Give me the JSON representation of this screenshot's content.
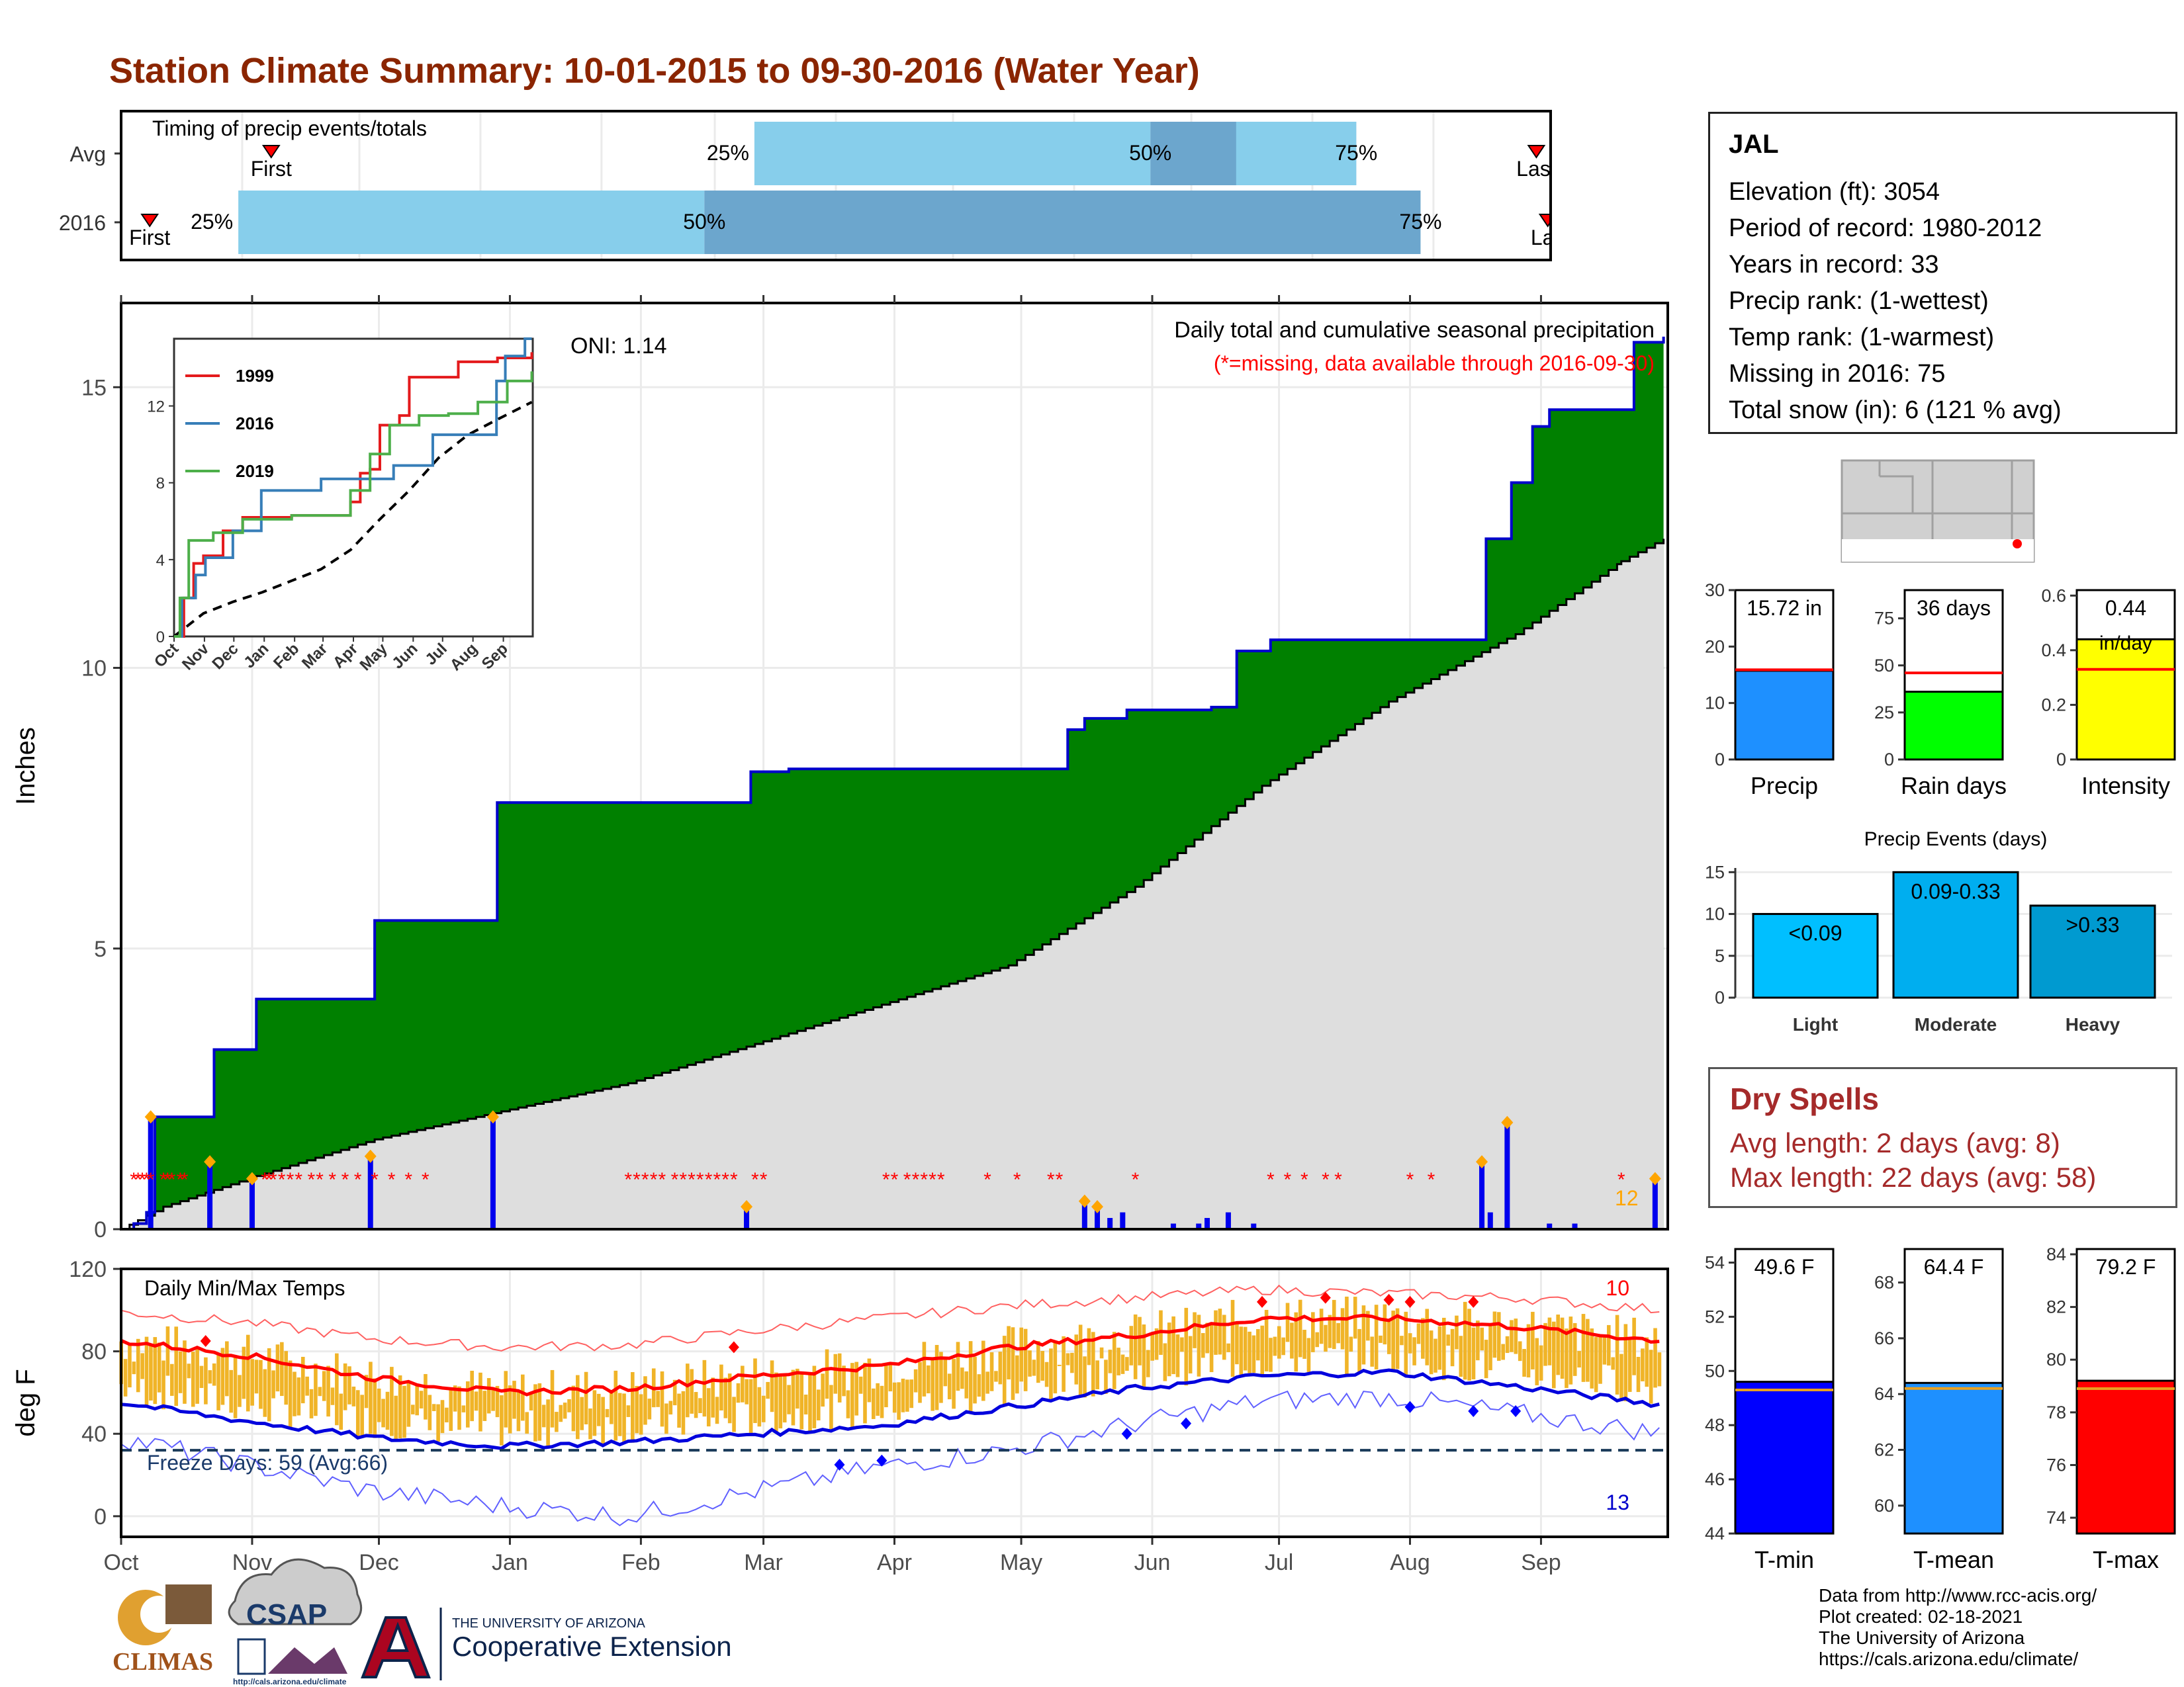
{
  "page": {
    "title": "Station Climate Summary: 10-01-2015 to 09-30-2016 (Water Year)"
  },
  "timing_panel": {
    "label": "Timing of precip events/totals",
    "rows": [
      {
        "name": "Avg",
        "first_label": "First",
        "last_label": "Last",
        "first_frac": 0.105,
        "last_frac": 0.99,
        "p25_frac": 0.443,
        "p50_frac": 0.72,
        "p75_frac": 0.864,
        "labels": [
          "25%",
          "50%",
          "75%"
        ]
      },
      {
        "name": "2016",
        "first_label": "First",
        "last_label": "Las",
        "first_frac": 0.02,
        "last_frac": 0.998,
        "p25_frac": 0.082,
        "p50_frac": 0.408,
        "p75_frac": 0.909,
        "labels": [
          "25%",
          "50%",
          "75%"
        ]
      }
    ]
  },
  "station": {
    "name": "JAL",
    "lines": [
      "Elevation (ft): 3054",
      "Period of record: 1980-2012",
      "Years in record: 33",
      "Precip rank:  (1-wettest)",
      "Temp rank:  (1-warmest)",
      "Missing in 2016: 75",
      "Total snow (in): 6 (121 % avg)"
    ]
  },
  "dry_spells": {
    "title": "Dry Spells",
    "lines": [
      "Avg length: 2 days (avg: 8)",
      "Max length: 22 days (avg: 58)"
    ]
  },
  "footer": {
    "lines": [
      "Data from http://www.rcc-acis.org/",
      "Plot created: 02-18-2021",
      "The University of Arizona",
      "https://cals.arizona.edu/climate/"
    ]
  },
  "logos": {
    "climas": "CLIMAS",
    "csap": "CSAP",
    "csap_url": "http://cals.arizona.edu/climate",
    "ua_top": "THE UNIVERSITY OF ARIZONA",
    "ua_bottom": "Cooperative Extension"
  },
  "colors": {
    "title": "#8b2500",
    "green": "#008000",
    "blue_line": "#0000cc",
    "gray_fill": "#dedede",
    "orange": "#f0b428",
    "red": "#ff0000",
    "light_blue": "#87ceeb",
    "mid_blue": "#6ca6cd",
    "dry": "#a52a2a"
  },
  "chart_data": [
    {
      "type": "area",
      "id": "precip-main",
      "title": "Daily total and cumulative seasonal precipitation",
      "subtitle": "(*=missing, data available through 2016-09-30)",
      "ylabel": "Inches",
      "ylim": [
        0,
        16.5
      ],
      "yticks": [
        0,
        5,
        10,
        15
      ],
      "x_months": [
        "Oct",
        "Nov",
        "Dec",
        "Jan",
        "Feb",
        "Mar",
        "Apr",
        "May",
        "Jun",
        "Jul",
        "Aug",
        "Sep"
      ],
      "oni_label": "ONI: 1.14",
      "count_label": "12",
      "cumulative_2016": [
        [
          0,
          0
        ],
        [
          3,
          0.1
        ],
        [
          6,
          0.3
        ],
        [
          8,
          2.0
        ],
        [
          21,
          2.0
        ],
        [
          22,
          3.2
        ],
        [
          31,
          3.2
        ],
        [
          32,
          4.1
        ],
        [
          59,
          4.1
        ],
        [
          60,
          5.5
        ],
        [
          88,
          5.5
        ],
        [
          89,
          7.6
        ],
        [
          148,
          7.6
        ],
        [
          149,
          8.15
        ],
        [
          157,
          8.15
        ],
        [
          158,
          8.2
        ],
        [
          222,
          8.2
        ],
        [
          224,
          8.9
        ],
        [
          228,
          9.1
        ],
        [
          238,
          9.25
        ],
        [
          258,
          9.3
        ],
        [
          264,
          10.3
        ],
        [
          272,
          10.5
        ],
        [
          314,
          10.5
        ],
        [
          322,
          10.5
        ],
        [
          323,
          12.3
        ],
        [
          329,
          13.3
        ],
        [
          334,
          14.3
        ],
        [
          338,
          14.6
        ],
        [
          354,
          14.6
        ],
        [
          358,
          15.8
        ],
        [
          365,
          15.9
        ]
      ],
      "cumulative_avg": [
        [
          0,
          0
        ],
        [
          10,
          0.4
        ],
        [
          30,
          0.9
        ],
        [
          60,
          1.6
        ],
        [
          90,
          2.1
        ],
        [
          120,
          2.6
        ],
        [
          150,
          3.3
        ],
        [
          180,
          4.0
        ],
        [
          210,
          4.7
        ],
        [
          240,
          6.1
        ],
        [
          270,
          7.9
        ],
        [
          300,
          9.4
        ],
        [
          330,
          10.6
        ],
        [
          355,
          11.9
        ],
        [
          365,
          12.3
        ]
      ],
      "daily_bars": [
        [
          7,
          2.0
        ],
        [
          21,
          1.2
        ],
        [
          31,
          0.9
        ],
        [
          59,
          1.3
        ],
        [
          88,
          2.0
        ],
        [
          148,
          0.4
        ],
        [
          228,
          0.5
        ],
        [
          231,
          0.4
        ],
        [
          234,
          0.2
        ],
        [
          237,
          0.3
        ],
        [
          249,
          0.1
        ],
        [
          255,
          0.1
        ],
        [
          257,
          0.2
        ],
        [
          262,
          0.3
        ],
        [
          268,
          0.1
        ],
        [
          322,
          1.2
        ],
        [
          324,
          0.3
        ],
        [
          328,
          1.9
        ],
        [
          338,
          0.1
        ],
        [
          344,
          0.1
        ],
        [
          363,
          0.9
        ]
      ],
      "missing_days": [
        3,
        4,
        5,
        6,
        7,
        10,
        11,
        12,
        14,
        15,
        34,
        35,
        36,
        38,
        40,
        42,
        45,
        47,
        50,
        53,
        56,
        60,
        64,
        68,
        72,
        120,
        122,
        124,
        126,
        128,
        131,
        133,
        135,
        137,
        139,
        141,
        143,
        145,
        150,
        152,
        181,
        183,
        186,
        188,
        190,
        192,
        194,
        205,
        212,
        220,
        222,
        240,
        272,
        276,
        280,
        285,
        288,
        305,
        310,
        355
      ],
      "inset": {
        "xlabels": [
          "Oct",
          "Nov",
          "Dec",
          "Jan",
          "Feb",
          "Mar",
          "Apr",
          "May",
          "Jun",
          "Jul",
          "Aug",
          "Sep"
        ],
        "yticks": [
          0,
          4,
          8,
          12
        ],
        "ylim": [
          0,
          15.5
        ],
        "series": [
          {
            "name": "1999",
            "color": "#e41a1c",
            "values": [
              [
                0,
                0
              ],
              [
                10,
                2
              ],
              [
                20,
                3.8
              ],
              [
                30,
                4.2
              ],
              [
                50,
                5.5
              ],
              [
                70,
                6.2
              ],
              [
                120,
                6.3
              ],
              [
                180,
                7
              ],
              [
                190,
                8.5
              ],
              [
                200,
                8.7
              ],
              [
                210,
                11
              ],
              [
                230,
                11.5
              ],
              [
                240,
                13.5
              ],
              [
                290,
                14.3
              ],
              [
                330,
                14.5
              ],
              [
                365,
                14.8
              ]
            ]
          },
          {
            "name": "2016",
            "color": "#377eb8",
            "values": [
              [
                0,
                0
              ],
              [
                8,
                2
              ],
              [
                22,
                3.2
              ],
              [
                32,
                4.1
              ],
              [
                60,
                5.5
              ],
              [
                89,
                7.6
              ],
              [
                150,
                8.2
              ],
              [
                224,
                8.9
              ],
              [
                264,
                10.5
              ],
              [
                322,
                10.5
              ],
              [
                329,
                13.3
              ],
              [
                338,
                14.6
              ],
              [
                358,
                15.8
              ],
              [
                365,
                16
              ]
            ]
          },
          {
            "name": "2019",
            "color": "#4daf4a",
            "values": [
              [
                0,
                0
              ],
              [
                6,
                2
              ],
              [
                15,
                5
              ],
              [
                40,
                5.4
              ],
              [
                70,
                6.1
              ],
              [
                120,
                6.3
              ],
              [
                180,
                7.6
              ],
              [
                200,
                9.5
              ],
              [
                220,
                11
              ],
              [
                250,
                11.5
              ],
              [
                280,
                11.6
              ],
              [
                310,
                12.2
              ],
              [
                340,
                13.3
              ],
              [
                365,
                13.8
              ]
            ]
          }
        ],
        "avg": [
          [
            0,
            0
          ],
          [
            30,
            1.2
          ],
          [
            60,
            1.8
          ],
          [
            90,
            2.3
          ],
          [
            120,
            2.9
          ],
          [
            150,
            3.5
          ],
          [
            180,
            4.5
          ],
          [
            210,
            6.1
          ],
          [
            240,
            7.6
          ],
          [
            270,
            9.3
          ],
          [
            300,
            10.5
          ],
          [
            330,
            11.3
          ],
          [
            365,
            12.2
          ]
        ]
      }
    },
    {
      "type": "line",
      "id": "temps",
      "title": "Daily Min/Max Temps",
      "ylabel": "deg F",
      "ylim": [
        -10,
        120
      ],
      "yticks": [
        0,
        40,
        80,
        120
      ],
      "freeze_label": "Freeze Days: 59 (Avg:66)",
      "freeze_line": 32,
      "record_high_count": "10",
      "record_low_count": "13",
      "avg_max": [
        [
          0,
          85
        ],
        [
          30,
          78
        ],
        [
          60,
          67
        ],
        [
          90,
          60
        ],
        [
          120,
          62
        ],
        [
          150,
          68
        ],
        [
          180,
          73
        ],
        [
          210,
          82
        ],
        [
          240,
          88
        ],
        [
          270,
          96
        ],
        [
          300,
          96
        ],
        [
          330,
          92
        ],
        [
          365,
          85
        ]
      ],
      "avg_min": [
        [
          0,
          55
        ],
        [
          30,
          46
        ],
        [
          60,
          38
        ],
        [
          90,
          34
        ],
        [
          120,
          36
        ],
        [
          150,
          40
        ],
        [
          180,
          44
        ],
        [
          210,
          53
        ],
        [
          240,
          62
        ],
        [
          270,
          68
        ],
        [
          300,
          70
        ],
        [
          330,
          63
        ],
        [
          365,
          54
        ]
      ],
      "record_max": [
        [
          0,
          99
        ],
        [
          30,
          94
        ],
        [
          60,
          86
        ],
        [
          90,
          82
        ],
        [
          120,
          83
        ],
        [
          150,
          90
        ],
        [
          180,
          96
        ],
        [
          210,
          102
        ],
        [
          240,
          106
        ],
        [
          270,
          110
        ],
        [
          300,
          108
        ],
        [
          330,
          106
        ],
        [
          365,
          100
        ]
      ],
      "record_min": [
        [
          0,
          38
        ],
        [
          30,
          25
        ],
        [
          60,
          12
        ],
        [
          90,
          5
        ],
        [
          120,
          0
        ],
        [
          150,
          12
        ],
        [
          180,
          24
        ],
        [
          210,
          32
        ],
        [
          240,
          45
        ],
        [
          270,
          56
        ],
        [
          300,
          58
        ],
        [
          330,
          50
        ],
        [
          365,
          40
        ]
      ]
    },
    {
      "type": "bar",
      "id": "precip-mini",
      "title": "",
      "panels": [
        {
          "category": "Precip",
          "value": 15.72,
          "avg": 15.9,
          "ylim": [
            0,
            30
          ],
          "yticks": [
            0,
            10,
            20,
            30
          ],
          "label": "15.72 in",
          "color": "#1e90ff"
        },
        {
          "category": "Rain days",
          "value": 36,
          "avg": 46,
          "ylim": [
            0,
            90
          ],
          "yticks": [
            0,
            25,
            50,
            75
          ],
          "label": "36 days",
          "color": "#00ff00"
        },
        {
          "category": "Intensity",
          "value": 0.44,
          "avg": 0.33,
          "ylim": [
            0,
            0.62
          ],
          "yticks": [
            0.0,
            0.2,
            0.4,
            0.6
          ],
          "label": "0.44",
          "label2": "in/day",
          "color": "#ffff00"
        }
      ]
    },
    {
      "type": "bar",
      "id": "precip-events",
      "title": "Precip Events (days)",
      "categories": [
        "Light",
        "Moderate",
        "Heavy"
      ],
      "values": [
        10,
        15,
        11
      ],
      "labels": [
        "<0.09",
        "0.09-0.33",
        ">0.33"
      ],
      "ylim": [
        0,
        15.5
      ],
      "yticks": [
        0,
        5,
        10,
        15
      ],
      "colors": [
        "#00bfff",
        "#00aeef",
        "#009ad0"
      ]
    },
    {
      "type": "bar",
      "id": "temp-mini",
      "title": "",
      "panels": [
        {
          "category": "T-min",
          "value": 49.6,
          "avg": 49.3,
          "ylim": [
            44,
            54.5
          ],
          "yticks": [
            44,
            46,
            48,
            50,
            52,
            54
          ],
          "label": "49.6 F",
          "color": "#0000ff"
        },
        {
          "category": "T-mean",
          "value": 64.4,
          "avg": 64.2,
          "ylim": [
            59,
            69.2
          ],
          "yticks": [
            60,
            62,
            64,
            66,
            68
          ],
          "label": "64.4 F",
          "color": "#1e90ff"
        },
        {
          "category": "T-max",
          "value": 79.2,
          "avg": 78.9,
          "ylim": [
            73.4,
            84.2
          ],
          "yticks": [
            74,
            76,
            78,
            80,
            82,
            84
          ],
          "label": "79.2 F",
          "color": "#ff0000"
        }
      ]
    }
  ]
}
